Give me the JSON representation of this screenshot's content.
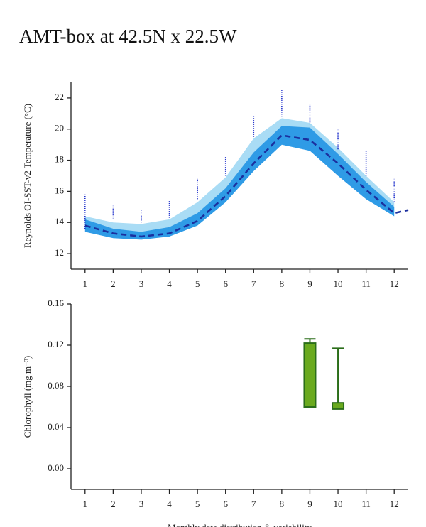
{
  "title": "AMT-box at 42.5N x 22.5W",
  "chart_data": [
    {
      "type": "line",
      "y_label": "Reynolds OI-SST-v2 Temperature (°C)",
      "x": [
        1,
        2,
        3,
        4,
        5,
        6,
        7,
        8,
        9,
        10,
        11,
        12,
        12.5
      ],
      "xlim": [
        0.5,
        12.5
      ],
      "xticks": [
        1,
        2,
        3,
        4,
        5,
        6,
        7,
        8,
        9,
        10,
        11,
        12
      ],
      "ylim": [
        11,
        23
      ],
      "yticks": [
        12,
        14,
        16,
        18,
        20,
        22
      ],
      "bands": [
        {
          "color": "#a9dcf5",
          "lower": [
            13.8,
            13.4,
            13.3,
            13.5,
            14.3,
            15.9,
            18.0,
            19.7,
            19.5,
            18.0,
            16.2,
            14.6,
            null
          ],
          "upper": [
            14.4,
            14.0,
            13.9,
            14.2,
            15.3,
            16.9,
            19.4,
            20.7,
            20.4,
            18.8,
            17.0,
            15.3,
            null
          ]
        },
        {
          "color": "#2f9be6",
          "lower": [
            13.4,
            13.0,
            12.9,
            13.1,
            13.8,
            15.3,
            17.3,
            19.0,
            18.6,
            17.0,
            15.5,
            14.4,
            null
          ],
          "upper": [
            14.2,
            13.6,
            13.4,
            13.7,
            14.6,
            16.2,
            18.5,
            20.2,
            20.1,
            18.4,
            16.6,
            15.0,
            null
          ]
        }
      ],
      "line": {
        "color": "#1b2f9e",
        "values": [
          13.8,
          13.3,
          13.1,
          13.3,
          14.1,
          15.7,
          17.8,
          19.6,
          19.3,
          17.8,
          16.1,
          14.6,
          14.8
        ]
      },
      "dots": {
        "color": "#2233cc",
        "low": [
          13.6,
          14.2,
          14.0,
          14.3,
          15.5,
          17.0,
          19.5,
          20.8,
          20.3,
          18.7,
          17.0,
          15.3,
          null
        ],
        "high": [
          15.8,
          15.2,
          14.8,
          15.4,
          16.8,
          18.3,
          20.8,
          22.5,
          21.7,
          20.1,
          18.6,
          16.9,
          null
        ]
      }
    },
    {
      "type": "box",
      "y_label": "Chlorophyll (mg m⁻³)",
      "x_label": "Monthly data distribution & variability",
      "x": [
        1,
        2,
        3,
        4,
        5,
        6,
        7,
        8,
        9,
        10,
        11,
        12
      ],
      "xlim": [
        0.5,
        12.5
      ],
      "xticks": [
        1,
        2,
        3,
        4,
        5,
        6,
        7,
        8,
        9,
        10,
        11,
        12
      ],
      "ylim": [
        -0.02,
        0.16
      ],
      "yticks": [
        {
          "value": 0,
          "label": "0.00"
        },
        {
          "value": 0.04,
          "label": "0.04"
        },
        {
          "value": 0.08,
          "label": "0.08"
        },
        {
          "value": 0.12,
          "label": "0.12"
        },
        {
          "value": 0.16,
          "label": "0.16"
        }
      ],
      "fill": "#6aaa1e",
      "stroke": "#2b6e1a",
      "q1": [
        null,
        null,
        null,
        null,
        null,
        null,
        null,
        null,
        0.06,
        0.058,
        null,
        null
      ],
      "q3": [
        null,
        null,
        null,
        null,
        null,
        null,
        null,
        null,
        0.122,
        0.064,
        null,
        null
      ],
      "whisker_low": [
        null,
        null,
        null,
        null,
        null,
        null,
        null,
        null,
        0.06,
        0.058,
        null,
        null
      ],
      "whisker_high": [
        null,
        null,
        null,
        null,
        null,
        null,
        null,
        null,
        0.126,
        0.117,
        null,
        null
      ]
    }
  ]
}
